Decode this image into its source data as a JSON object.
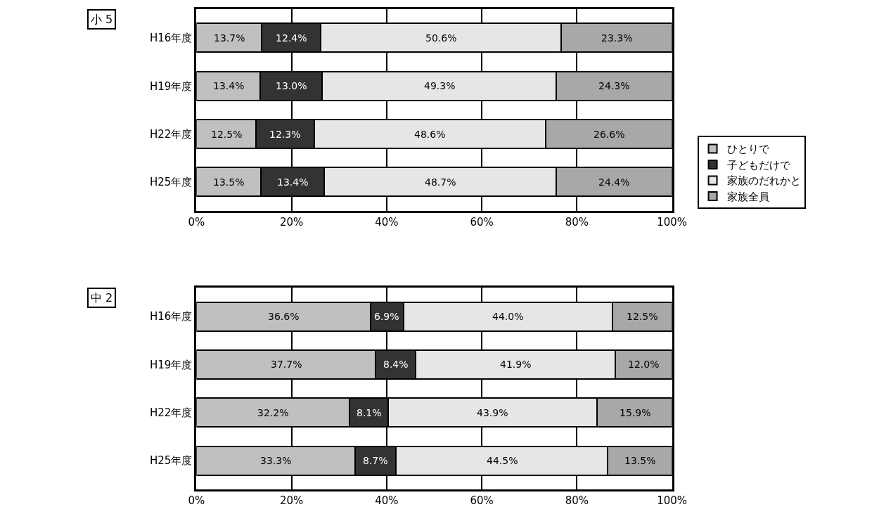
{
  "chart_data": [
    {
      "type": "bar",
      "title": "小 5",
      "orientation": "horizontal",
      "stacked": true,
      "categories": [
        "H16年度",
        "H19年度",
        "H22年度",
        "H25年度"
      ],
      "xlim": [
        0,
        100
      ],
      "xticks": [
        {
          "value": 0,
          "label": "0%"
        },
        {
          "value": 20,
          "label": "20%"
        },
        {
          "value": 40,
          "label": "40%"
        },
        {
          "value": 60,
          "label": "60%"
        },
        {
          "value": 80,
          "label": "80%"
        },
        {
          "value": 100,
          "label": "100%"
        }
      ],
      "grid": "x",
      "legend": "right",
      "series": [
        {
          "name": "ひとりで",
          "color": "#c0c0c0",
          "values": [
            13.7,
            13.4,
            12.5,
            13.5
          ],
          "value_labels": [
            "13.7%",
            "13.4%",
            "12.5%",
            "13.5%"
          ]
        },
        {
          "name": "子どもだけで",
          "color": "#333333",
          "values": [
            12.4,
            13.0,
            12.3,
            13.4
          ],
          "value_labels": [
            "12.4%",
            "13.0%",
            "12.3%",
            "13.4%"
          ]
        },
        {
          "name": "家族のだれかと",
          "color": "#e6e6e6",
          "values": [
            50.6,
            49.3,
            48.6,
            48.7
          ],
          "value_labels": [
            "50.6%",
            "49.3%",
            "48.6%",
            "48.7%"
          ]
        },
        {
          "name": "家族全員",
          "color": "#a8a8a8",
          "values": [
            23.3,
            24.3,
            26.6,
            24.4
          ],
          "value_labels": [
            "23.3%",
            "24.3%",
            "26.6%",
            "24.4%"
          ]
        }
      ]
    },
    {
      "type": "bar",
      "title": "中 2",
      "orientation": "horizontal",
      "stacked": true,
      "categories": [
        "H16年度",
        "H19年度",
        "H22年度",
        "H25年度"
      ],
      "xlim": [
        0,
        100
      ],
      "xticks": [
        {
          "value": 0,
          "label": "0%"
        },
        {
          "value": 20,
          "label": "20%"
        },
        {
          "value": 40,
          "label": "40%"
        },
        {
          "value": 60,
          "label": "60%"
        },
        {
          "value": 80,
          "label": "80%"
        },
        {
          "value": 100,
          "label": "100%"
        }
      ],
      "grid": "x",
      "series": [
        {
          "color": "#c0c0c0",
          "values": [
            36.6,
            37.7,
            32.2,
            33.3
          ],
          "value_labels": [
            "36.6%",
            "37.7%",
            "32.2%",
            "33.3%"
          ]
        },
        {
          "color": "#333333",
          "values": [
            6.9,
            8.4,
            8.1,
            8.7
          ],
          "value_labels": [
            "6.9%",
            "8.4%",
            "8.1%",
            "8.7%"
          ]
        },
        {
          "color": "#e6e6e6",
          "values": [
            44.0,
            41.9,
            43.9,
            44.5
          ],
          "value_labels": [
            "44.0%",
            "41.9%",
            "43.9%",
            "44.5%"
          ]
        },
        {
          "color": "#a8a8a8",
          "values": [
            12.5,
            12.0,
            15.9,
            13.5
          ],
          "value_labels": [
            "12.5%",
            "12.0%",
            "15.9%",
            "13.5%"
          ]
        }
      ]
    }
  ]
}
